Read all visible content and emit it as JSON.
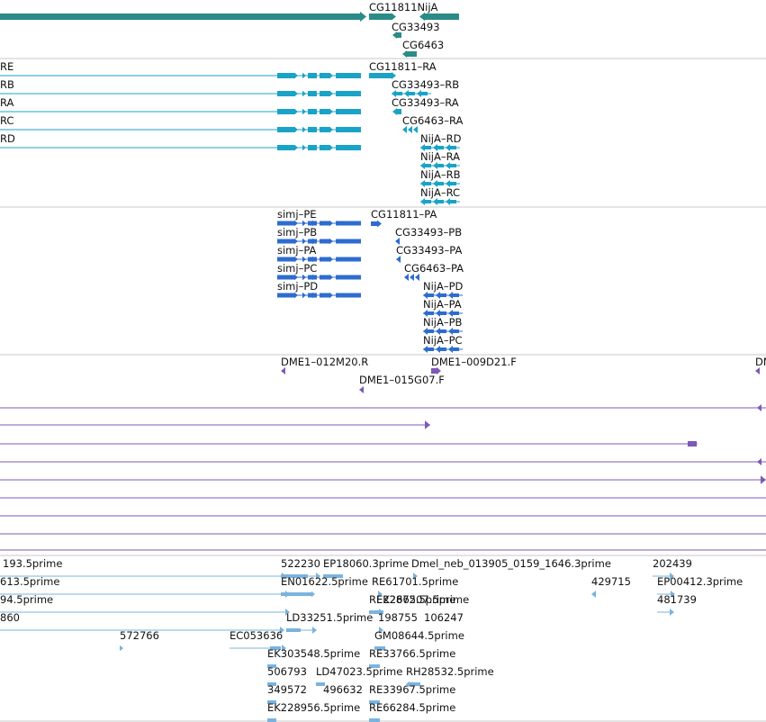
{
  "colors": {
    "gene": "#2b8b87",
    "transcript": "#1aa3c6",
    "protein": "#2e6ccf",
    "clone": "#7d5ab7",
    "est": "#7ab3de",
    "divider": "#c8c8c8"
  },
  "tracks": {
    "genes": {
      "features": [
        {
          "id": "g-cg11811-nija",
          "label": "CG11811NijA"
        },
        {
          "id": "g-cg33493",
          "label": "CG33493"
        },
        {
          "id": "g-cg6463",
          "label": "CG6463"
        }
      ]
    },
    "transcripts": {
      "features": [
        {
          "id": "t-re",
          "label": "RE"
        },
        {
          "id": "t-rb",
          "label": "RB"
        },
        {
          "id": "t-ra",
          "label": "RA"
        },
        {
          "id": "t-rc",
          "label": "RC"
        },
        {
          "id": "t-rd",
          "label": "RD"
        },
        {
          "id": "t-cg11811-ra",
          "label": "CG11811–RA"
        },
        {
          "id": "t-cg33493-rb",
          "label": "CG33493–RB"
        },
        {
          "id": "t-cg33493-ra",
          "label": "CG33493–RA"
        },
        {
          "id": "t-cg6463-ra",
          "label": "CG6463–RA"
        },
        {
          "id": "t-nija-rd",
          "label": "NijA–RD"
        },
        {
          "id": "t-nija-ra",
          "label": "NijA–RA"
        },
        {
          "id": "t-nija-rb",
          "label": "NijA–RB"
        },
        {
          "id": "t-nija-rc",
          "label": "NijA–RC"
        }
      ]
    },
    "proteins": {
      "features": [
        {
          "id": "p-simj-pe",
          "label": "simj–PE"
        },
        {
          "id": "p-simj-pb",
          "label": "simj–PB"
        },
        {
          "id": "p-simj-pa",
          "label": "simj–PA"
        },
        {
          "id": "p-simj-pc",
          "label": "simj–PC"
        },
        {
          "id": "p-simj-pd",
          "label": "simj–PD"
        },
        {
          "id": "p-cg11811-pa",
          "label": "CG11811–PA"
        },
        {
          "id": "p-cg33493-pb",
          "label": "CG33493–PB"
        },
        {
          "id": "p-cg33493-pa",
          "label": "CG33493–PA"
        },
        {
          "id": "p-cg6463-pa",
          "label": "CG6463–PA"
        },
        {
          "id": "p-nija-pd",
          "label": "NijA–PD"
        },
        {
          "id": "p-nija-pa",
          "label": "NijA–PA"
        },
        {
          "id": "p-nija-pb",
          "label": "NijA–PB"
        },
        {
          "id": "p-nija-pc",
          "label": "NijA–PC"
        }
      ]
    },
    "clones": {
      "features": [
        {
          "id": "c-012m20",
          "label": "DME1–012M20.R"
        },
        {
          "id": "c-009d21",
          "label": "DME1–009D21.F"
        },
        {
          "id": "c-dm",
          "label": "DM"
        },
        {
          "id": "c-015g07",
          "label": "DME1–015G07.F"
        }
      ]
    },
    "ests": {
      "features": [
        {
          "id": "e-1",
          "label": "193.5prime"
        },
        {
          "id": "e-2",
          "label": "522230"
        },
        {
          "id": "e-3",
          "label": "EP18060.3prime"
        },
        {
          "id": "e-4",
          "label": "Dmel_neb_013905_0159_1646.3prime"
        },
        {
          "id": "e-5",
          "label": "202439"
        },
        {
          "id": "e-6",
          "label": "613.5prime"
        },
        {
          "id": "e-7",
          "label": "EN01622.5prime"
        },
        {
          "id": "e-8",
          "label": "RE61701.5prime"
        },
        {
          "id": "e-9",
          "label": "429715"
        },
        {
          "id": "e-10",
          "label": "EP00412.3prime"
        },
        {
          "id": "e-11",
          "label": "94.5prime"
        },
        {
          "id": "e-12",
          "label": "RE22872.5prime"
        },
        {
          "id": "e-13",
          "label": "EK266507.5prime"
        },
        {
          "id": "e-14",
          "label": "481739"
        },
        {
          "id": "e-15",
          "label": "860"
        },
        {
          "id": "e-16",
          "label": "LD33251.5prime"
        },
        {
          "id": "e-17",
          "label": "198755"
        },
        {
          "id": "e-18",
          "label": "106247"
        },
        {
          "id": "e-19",
          "label": "572766"
        },
        {
          "id": "e-20",
          "label": "EC053636"
        },
        {
          "id": "e-21",
          "label": "GM08644.5prime"
        },
        {
          "id": "e-22",
          "label": "EK303548.5prime"
        },
        {
          "id": "e-23",
          "label": "RE33766.5prime"
        },
        {
          "id": "e-24",
          "label": "506793"
        },
        {
          "id": "e-25",
          "label": "LD47023.5prime"
        },
        {
          "id": "e-26",
          "label": "RH28532.5prime"
        },
        {
          "id": "e-27",
          "label": "349572"
        },
        {
          "id": "e-28",
          "label": "496632"
        },
        {
          "id": "e-29",
          "label": "RE33967.5prime"
        },
        {
          "id": "e-30",
          "label": "EK228956.5prime"
        },
        {
          "id": "e-31",
          "label": "RE66284.5prime"
        }
      ]
    }
  }
}
